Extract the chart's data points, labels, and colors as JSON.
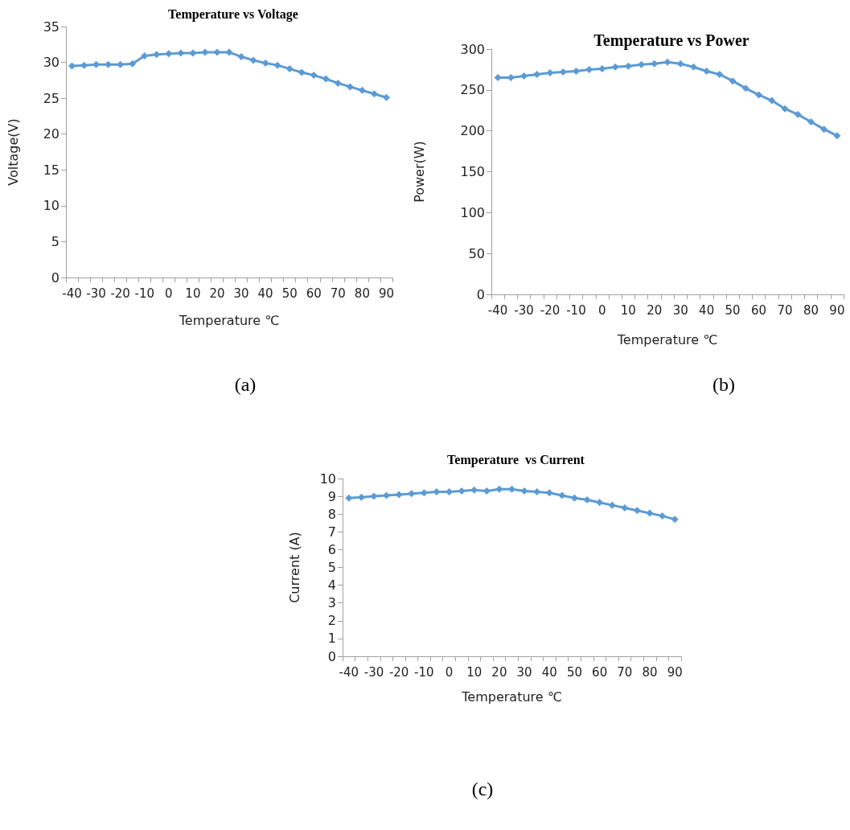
{
  "chart_data": [
    {
      "type": "line",
      "title": "Temperature vs Voltage",
      "xlabel": "Temperature ℃",
      "ylabel": "Voltage(V)",
      "annotations": [
        "(a)"
      ],
      "categories": [
        "-40",
        null,
        "-30",
        null,
        "-20",
        null,
        "-10",
        null,
        "0",
        null,
        "10",
        null,
        "20",
        null,
        "30",
        null,
        "40",
        null,
        "50",
        null,
        "60",
        null,
        "70",
        null,
        "80",
        null,
        "90"
      ],
      "series": [
        {
          "color": "#5b9bd5",
          "values": [
            29.5,
            29.6,
            29.7,
            29.7,
            29.7,
            29.8,
            30.9,
            31.1,
            31.2,
            31.3,
            31.3,
            31.4,
            31.4,
            31.4,
            30.8,
            30.3,
            29.9,
            29.6,
            29.1,
            28.6,
            28.2,
            27.7,
            27.1,
            26.6,
            26.1,
            25.6,
            25.1
          ]
        }
      ],
      "ylim": [
        0,
        35
      ],
      "yticks": [
        0,
        5,
        10,
        15,
        20,
        25,
        30,
        35
      ],
      "grid": false,
      "marker": "diamond",
      "line_style": "solid"
    },
    {
      "type": "line",
      "title": "Temperature vs Power",
      "xlabel": "Temperature ℃",
      "ylabel": "Power(W)",
      "annotations": [
        "(b)"
      ],
      "categories": [
        "-40",
        null,
        "-30",
        null,
        "-20",
        null,
        "-10",
        null,
        "0",
        null,
        "10",
        null,
        "20",
        null,
        "30",
        null,
        "40",
        null,
        "50",
        null,
        "60",
        null,
        "70",
        null,
        "80",
        null,
        "90"
      ],
      "series": [
        {
          "color": "#5b9bd5",
          "values": [
            265,
            265,
            267,
            269,
            271,
            272,
            273,
            275,
            276,
            278,
            279,
            281,
            282,
            284,
            282,
            278,
            273,
            269,
            261,
            252,
            244,
            237,
            227,
            220,
            211,
            202,
            194
          ]
        }
      ],
      "ylim": [
        0,
        300
      ],
      "yticks": [
        0,
        50,
        100,
        150,
        200,
        250,
        300
      ],
      "grid": false,
      "marker": "diamond",
      "line_style": "solid"
    },
    {
      "type": "line",
      "title": "Temperature  vs Current",
      "xlabel": "Temperature ℃",
      "ylabel": "Current (A)",
      "annotations": [
        "(c)"
      ],
      "categories": [
        "-40",
        null,
        "-30",
        null,
        "-20",
        null,
        "-10",
        null,
        "0",
        null,
        "10",
        null,
        "20",
        null,
        "30",
        null,
        "40",
        null,
        "50",
        null,
        "60",
        null,
        "70",
        null,
        "80",
        null,
        "90"
      ],
      "series": [
        {
          "color": "#5b9bd5",
          "values": [
            8.9,
            8.95,
            9.0,
            9.05,
            9.1,
            9.15,
            9.2,
            9.25,
            9.25,
            9.3,
            9.35,
            9.3,
            9.4,
            9.4,
            9.3,
            9.25,
            9.2,
            9.05,
            8.9,
            8.8,
            8.65,
            8.5,
            8.35,
            8.2,
            8.05,
            7.9,
            7.7
          ]
        }
      ],
      "ylim": [
        0,
        10
      ],
      "yticks": [
        0,
        1,
        2,
        3,
        4,
        5,
        6,
        7,
        8,
        9,
        10
      ],
      "grid": false,
      "marker": "diamond",
      "line_style": "solid"
    }
  ]
}
